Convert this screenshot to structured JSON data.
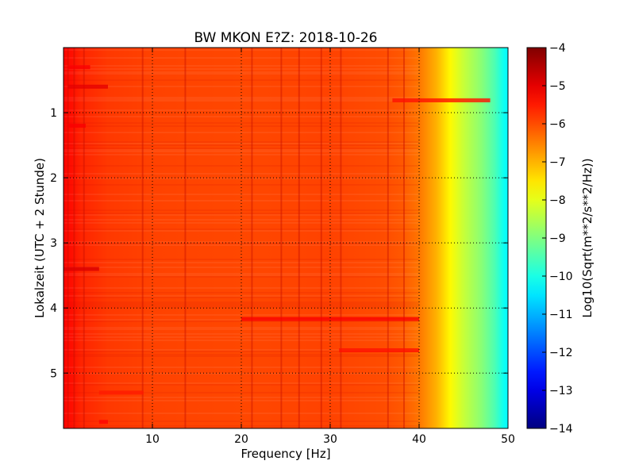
{
  "chart_data": {
    "type": "heatmap",
    "title": "BW MKON E?Z: 2018-10-26",
    "xlabel": "Frequency [Hz]",
    "ylabel": "Lokalzeit (UTC + 2 Stunde)",
    "xlim": [
      0,
      50
    ],
    "ylim": [
      5.85,
      0
    ],
    "xticks": [
      10,
      20,
      30,
      40,
      50
    ],
    "yticks": [
      1,
      2,
      3,
      4,
      5
    ],
    "grid": true,
    "colorbar": {
      "label": "Log10(Sqrt(m**2/s**2/Hz))",
      "range": [
        -14,
        -4
      ],
      "ticks": [
        -4,
        -5,
        -6,
        -7,
        -8,
        -9,
        -10,
        -11,
        -12,
        -13,
        -14
      ],
      "colormap": "jet"
    },
    "level_profile": {
      "freq_hz": [
        0,
        1,
        2,
        5,
        10,
        20,
        30,
        36,
        38,
        40,
        42,
        43.5,
        45,
        47,
        48.5,
        49.5,
        50
      ],
      "log10_value": [
        -5.3,
        -5.4,
        -5.6,
        -5.8,
        -5.9,
        -5.95,
        -5.9,
        -6.0,
        -6.1,
        -6.4,
        -7.0,
        -7.7,
        -8.3,
        -8.9,
        -9.5,
        -10.1,
        -10.3
      ]
    },
    "vertical_lines_hz": [
      0.5,
      1.2,
      2.3,
      8.9,
      13.7,
      21.2,
      24.5,
      26.5,
      29.0,
      31.2,
      36.5,
      38.3
    ],
    "horizontal_bands": [
      {
        "time_h": 0.3,
        "from_hz": 0.5,
        "to_hz": 3.0,
        "log10_value": -5.2
      },
      {
        "time_h": 0.6,
        "from_hz": 0.5,
        "to_hz": 5.0,
        "log10_value": -5.0
      },
      {
        "time_h": 0.81,
        "from_hz": 37.0,
        "to_hz": 48.0,
        "log10_value": -5.4
      },
      {
        "time_h": 1.2,
        "from_hz": 0.5,
        "to_hz": 2.5,
        "log10_value": -5.2
      },
      {
        "time_h": 3.4,
        "from_hz": 0.0,
        "to_hz": 4.0,
        "log10_value": -4.9
      },
      {
        "time_h": 4.17,
        "from_hz": 20.0,
        "to_hz": 40.0,
        "log10_value": -5.2
      },
      {
        "time_h": 4.65,
        "from_hz": 31.0,
        "to_hz": 40.0,
        "log10_value": -5.4
      },
      {
        "time_h": 5.3,
        "from_hz": 4.0,
        "to_hz": 9.0,
        "log10_value": -5.5
      },
      {
        "time_h": 5.75,
        "from_hz": 4.0,
        "to_hz": 5.0,
        "log10_value": -5.3
      }
    ]
  }
}
